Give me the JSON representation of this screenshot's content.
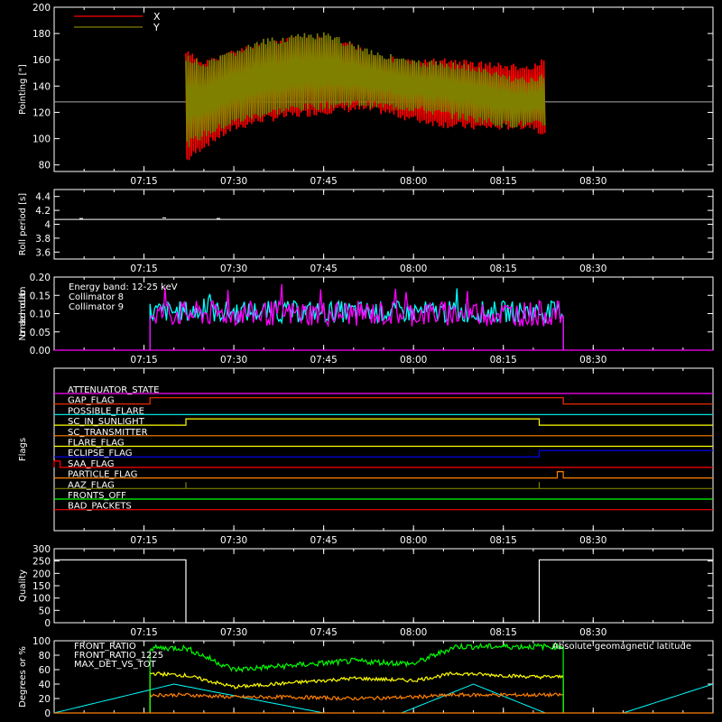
{
  "chart_data": [
    {
      "type": "line",
      "id": "pointing",
      "ylabel": "Pointing [\"]",
      "ylim": [
        75,
        200
      ],
      "yticks": [
        80,
        100,
        120,
        140,
        160,
        180,
        200
      ],
      "legend": [
        {
          "name": "X",
          "color": "#ff0000"
        },
        {
          "name": "Y",
          "color": "#808000"
        }
      ],
      "reference_line": 128,
      "series": [
        {
          "name": "X",
          "color": "#ff0000",
          "x": [
            "07:22",
            "07:25",
            "07:30",
            "07:35",
            "07:40",
            "07:45",
            "07:50",
            "07:55",
            "08:00",
            "08:05",
            "08:10",
            "08:15",
            "08:20",
            "08:22"
          ],
          "upper": [
            168,
            160,
            168,
            174,
            178,
            178,
            172,
            164,
            160,
            162,
            160,
            158,
            156,
            163
          ],
          "lower": [
            80,
            92,
            105,
            112,
            115,
            118,
            120,
            118,
            112,
            108,
            106,
            106,
            107,
            100
          ]
        },
        {
          "name": "Y",
          "color": "#808000",
          "x": [
            "07:22",
            "07:25",
            "07:30",
            "07:35",
            "07:40",
            "07:45",
            "07:50",
            "07:55",
            "08:00",
            "08:05",
            "08:10",
            "08:15",
            "08:20",
            "08:22"
          ],
          "upper": [
            165,
            158,
            168,
            176,
            180,
            181,
            174,
            166,
            160,
            160,
            156,
            150,
            147,
            150
          ],
          "lower": [
            92,
            100,
            110,
            116,
            120,
            122,
            124,
            122,
            120,
            116,
            112,
            108,
            108,
            108
          ]
        }
      ]
    },
    {
      "type": "line",
      "id": "roll",
      "ylabel": "Roll period [s]",
      "ylim": [
        3.5,
        4.5
      ],
      "yticks": [
        3.6,
        3.8,
        4.0,
        4.2,
        4.4
      ],
      "series": [
        {
          "name": "",
          "color": "#ffffff",
          "x": [
            "07:00",
            "08:50"
          ],
          "values": [
            4.07,
            4.07
          ]
        }
      ]
    },
    {
      "type": "line",
      "id": "modulation",
      "ylabel": "Normalized modulation",
      "ylim": [
        0,
        0.2
      ],
      "yticks": [
        "0.00",
        "0.05",
        "0.10",
        "0.15",
        "0.20"
      ],
      "legend": [
        {
          "name": "Energy band: 12-25 keV",
          "color": "#ffffff"
        },
        {
          "name": "Collimator 8",
          "color": "#00ffff"
        },
        {
          "name": "Collimator 9",
          "color": "#ff00ff"
        }
      ],
      "series": [
        {
          "name": "Collimator 8",
          "color": "#00ffff",
          "x_range": [
            "07:16",
            "08:25"
          ],
          "mean": 0.105,
          "spread": 0.03
        },
        {
          "name": "Collimator 9",
          "color": "#ff00ff",
          "x_range": [
            "07:16",
            "08:25"
          ],
          "mean": 0.1,
          "spread": 0.035
        }
      ]
    },
    {
      "type": "line",
      "id": "flags",
      "ylabel": "Flags",
      "flags": [
        {
          "label": "ATTENUATOR_STATE",
          "color": "#ff00ff",
          "steps": []
        },
        {
          "label": "GAP_FLAG",
          "color": "#ff3000",
          "steps": [
            [
              "07:16",
              1
            ],
            [
              "08:25",
              0
            ]
          ]
        },
        {
          "label": "POSSIBLE_FLARE",
          "color": "#00e0e0",
          "steps": []
        },
        {
          "label": "SC_IN_SUNLIGHT",
          "color": "#ffff00",
          "steps": [
            [
              "07:22",
              1
            ],
            [
              "08:21",
              0
            ]
          ]
        },
        {
          "label": "SC_TRANSMITTER",
          "color": "#ff8000",
          "steps": []
        },
        {
          "label": "FLARE_FLAG",
          "color": "#ffff00",
          "steps": []
        },
        {
          "label": "ECLIPSE_FLAG",
          "color": "#0000ff",
          "steps": [
            [
              "07:22",
              0
            ],
            [
              "08:21",
              1
            ]
          ]
        },
        {
          "label": "SAA_FLAG",
          "color": "#ff0000",
          "steps": [
            [
              "07:00",
              1
            ],
            [
              "07:01",
              0
            ]
          ]
        },
        {
          "label": "PARTICLE_FLAG",
          "color": "#ff8000",
          "steps": [
            [
              "08:24",
              1
            ],
            [
              "08:25",
              0
            ]
          ]
        },
        {
          "label": "AAZ_FLAG",
          "color": "#808000",
          "steps": [
            [
              "07:22",
              1
            ],
            [
              "07:22",
              0
            ],
            [
              "08:21",
              1
            ],
            [
              "08:21",
              0
            ]
          ]
        },
        {
          "label": "FRONTS_OFF",
          "color": "#00ff00",
          "steps": []
        },
        {
          "label": "BAD_PACKETS",
          "color": "#ff0000",
          "steps": []
        }
      ]
    },
    {
      "type": "line",
      "id": "quality",
      "ylabel": "Quality",
      "ylim": [
        0,
        300
      ],
      "yticks": [
        0,
        50,
        100,
        150,
        200,
        250,
        300
      ],
      "series": [
        {
          "name": "",
          "color": "#ffffff",
          "x": [
            "07:00",
            "07:22",
            "07:22",
            "08:21",
            "08:21",
            "08:50"
          ],
          "values": [
            255,
            255,
            0,
            0,
            255,
            255
          ]
        }
      ]
    },
    {
      "type": "line",
      "id": "front_ratio",
      "ylabel": "Degrees or %",
      "ylim": [
        0,
        100
      ],
      "yticks": [
        0,
        20,
        40,
        60,
        80,
        100
      ],
      "legend": [
        {
          "name": "FRONT_RATIO",
          "color": "#ffff00"
        },
        {
          "name": "FRONT_RATIO_1225",
          "color": "#00ff00"
        },
        {
          "name": "MAX_DET_VS_TOT",
          "color": "#ff8000"
        },
        {
          "name": "Absolute geomagnetic latitude",
          "color": "#00ffff"
        }
      ],
      "series": [
        {
          "name": "FRONT_RATIO",
          "color": "#ffff00",
          "x": [
            "07:16",
            "07:22",
            "07:30",
            "07:40",
            "07:50",
            "08:00",
            "08:07",
            "08:15",
            "08:20",
            "08:25"
          ],
          "values": [
            55,
            52,
            36,
            42,
            48,
            45,
            55,
            52,
            50,
            50
          ]
        },
        {
          "name": "FRONT_RATIO_1225",
          "color": "#00ff00",
          "x": [
            "07:16",
            "07:22",
            "07:30",
            "07:40",
            "07:50",
            "08:00",
            "08:07",
            "08:15",
            "08:20",
            "08:25"
          ],
          "values": [
            90,
            90,
            60,
            66,
            72,
            68,
            92,
            92,
            92,
            92
          ]
        },
        {
          "name": "MAX_DET_VS_TOT",
          "color": "#ff8000",
          "x": [
            "07:16",
            "07:22",
            "07:30",
            "07:40",
            "07:50",
            "08:00",
            "08:07",
            "08:15",
            "08:20",
            "08:25"
          ],
          "values": [
            25,
            25,
            22,
            22,
            20,
            22,
            25,
            25,
            25,
            25
          ]
        },
        {
          "name": "Absolute geomagnetic latitude",
          "color": "#00ffff",
          "x": [
            "07:00",
            "07:20",
            "07:45",
            "07:58",
            "08:10",
            "08:22",
            "08:35",
            "08:50"
          ],
          "values": [
            0,
            40,
            0,
            0,
            40,
            0,
            0,
            40
          ]
        }
      ]
    }
  ],
  "x_axis": {
    "ticks": [
      "07:15",
      "07:30",
      "07:45",
      "08:00",
      "08:15",
      "08:30"
    ],
    "range": [
      "07:00",
      "08:50"
    ]
  }
}
